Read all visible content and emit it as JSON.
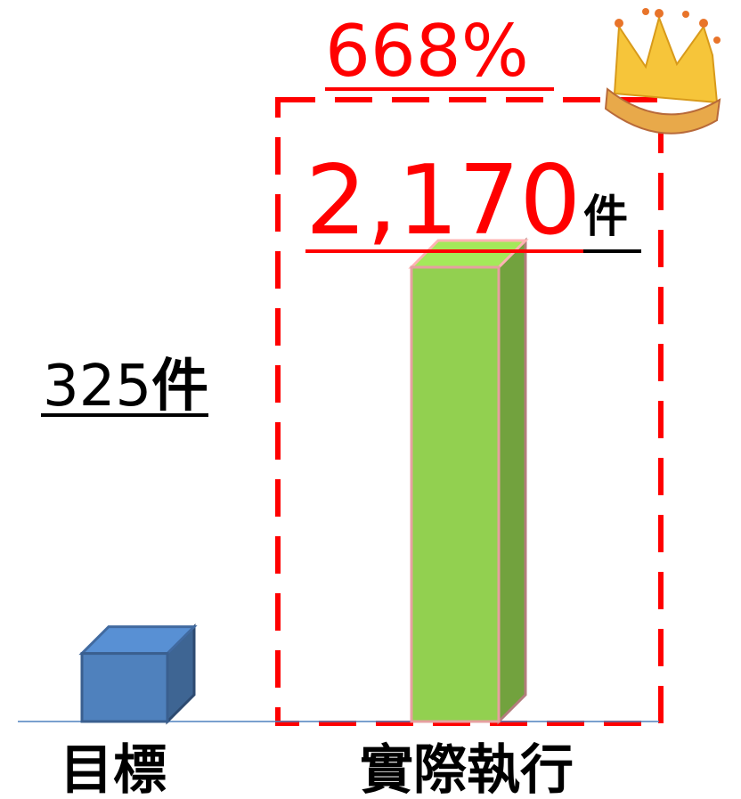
{
  "chart_data": {
    "type": "bar3d",
    "categories": [
      "目標",
      "實際執行"
    ],
    "values": [
      325,
      2170
    ],
    "value_labels": [
      "325",
      "2,170"
    ],
    "unit": "件",
    "annotation": "668%",
    "colors": [
      "#4f81bd",
      "#92d050"
    ]
  }
}
